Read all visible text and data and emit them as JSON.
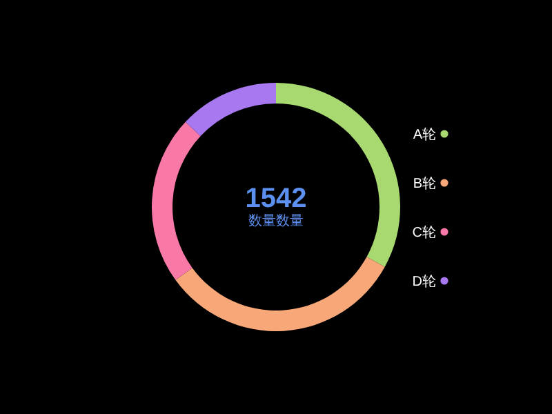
{
  "chart_data": {
    "type": "donut",
    "title": "1542",
    "subtitle": "数量数量",
    "categories": [
      "A轮",
      "B轮",
      "C轮",
      "D轮"
    ],
    "values": [
      33,
      32,
      22,
      13
    ],
    "colors": [
      "#a8d870",
      "#f8a878",
      "#f878a8",
      "#a878f0"
    ],
    "legend": "right"
  }
}
